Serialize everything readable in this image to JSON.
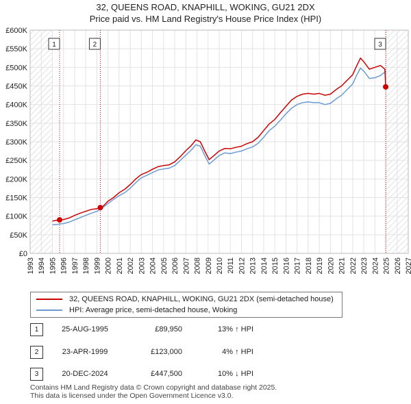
{
  "title_line1": "32, QUEENS ROAD, KNAPHILL, WOKING, GU21 2DX",
  "title_line2": "Price paid vs. HM Land Registry's House Price Index (HPI)",
  "chart_data": {
    "type": "line",
    "xlim": [
      1993,
      2027
    ],
    "ylim": [
      0,
      600000
    ],
    "x_ticks": [
      "1993",
      "1994",
      "1995",
      "1996",
      "1997",
      "1998",
      "1999",
      "2000",
      "2001",
      "2002",
      "2003",
      "2004",
      "2005",
      "2006",
      "2007",
      "2008",
      "2009",
      "2010",
      "2011",
      "2012",
      "2013",
      "2014",
      "2015",
      "2016",
      "2017",
      "2018",
      "2019",
      "2020",
      "2021",
      "2022",
      "2023",
      "2024",
      "2025",
      "2026",
      "2027"
    ],
    "y_ticks": [
      {
        "value": 0,
        "label": "£0"
      },
      {
        "value": 50000,
        "label": "£50K"
      },
      {
        "value": 100000,
        "label": "£100K"
      },
      {
        "value": 150000,
        "label": "£150K"
      },
      {
        "value": 200000,
        "label": "£200K"
      },
      {
        "value": 250000,
        "label": "£250K"
      },
      {
        "value": 300000,
        "label": "£300K"
      },
      {
        "value": 350000,
        "label": "£350K"
      },
      {
        "value": 400000,
        "label": "£400K"
      },
      {
        "value": 450000,
        "label": "£450K"
      },
      {
        "value": 500000,
        "label": "£500K"
      },
      {
        "value": 550000,
        "label": "£550K"
      },
      {
        "value": 600000,
        "label": "£600K"
      }
    ],
    "hatch_before": 1995.0,
    "hatch_after": 2025.0,
    "series": [
      {
        "name": "32, QUEENS ROAD, KNAPHILL, WOKING, GU21 2DX (semi-detached house)",
        "color": "#cc0000",
        "points": [
          [
            1995.0,
            87000
          ],
          [
            1995.65,
            89950
          ],
          [
            1996.0,
            91000
          ],
          [
            1996.5,
            95000
          ],
          [
            1997.0,
            102000
          ],
          [
            1997.5,
            108000
          ],
          [
            1998.0,
            113000
          ],
          [
            1998.5,
            118000
          ],
          [
            1999.0,
            120000
          ],
          [
            1999.31,
            123000
          ],
          [
            1999.6,
            128000
          ],
          [
            2000.0,
            140000
          ],
          [
            2000.5,
            150000
          ],
          [
            2001.0,
            163000
          ],
          [
            2001.5,
            172000
          ],
          [
            2002.0,
            185000
          ],
          [
            2002.5,
            200000
          ],
          [
            2003.0,
            212000
          ],
          [
            2003.5,
            218000
          ],
          [
            2004.0,
            226000
          ],
          [
            2004.5,
            233000
          ],
          [
            2005.0,
            236000
          ],
          [
            2005.5,
            238000
          ],
          [
            2006.0,
            246000
          ],
          [
            2006.5,
            260000
          ],
          [
            2007.0,
            276000
          ],
          [
            2007.5,
            290000
          ],
          [
            2007.9,
            305000
          ],
          [
            2008.3,
            300000
          ],
          [
            2008.7,
            275000
          ],
          [
            2009.1,
            252000
          ],
          [
            2009.5,
            262000
          ],
          [
            2010.0,
            275000
          ],
          [
            2010.5,
            282000
          ],
          [
            2011.0,
            281000
          ],
          [
            2011.5,
            285000
          ],
          [
            2012.0,
            288000
          ],
          [
            2012.5,
            295000
          ],
          [
            2013.0,
            300000
          ],
          [
            2013.5,
            312000
          ],
          [
            2014.0,
            330000
          ],
          [
            2014.5,
            348000
          ],
          [
            2015.0,
            360000
          ],
          [
            2015.5,
            378000
          ],
          [
            2016.0,
            395000
          ],
          [
            2016.5,
            412000
          ],
          [
            2017.0,
            422000
          ],
          [
            2017.5,
            428000
          ],
          [
            2018.0,
            430000
          ],
          [
            2018.5,
            428000
          ],
          [
            2019.0,
            430000
          ],
          [
            2019.5,
            425000
          ],
          [
            2020.0,
            428000
          ],
          [
            2020.5,
            440000
          ],
          [
            2021.0,
            450000
          ],
          [
            2021.5,
            465000
          ],
          [
            2022.0,
            480000
          ],
          [
            2022.3,
            500000
          ],
          [
            2022.7,
            525000
          ],
          [
            2023.0,
            515000
          ],
          [
            2023.5,
            495000
          ],
          [
            2024.0,
            500000
          ],
          [
            2024.5,
            505000
          ],
          [
            2024.9,
            495000
          ],
          [
            2024.97,
            447500
          ]
        ]
      },
      {
        "name": "HPI: Average price, semi-detached house, Woking",
        "color": "#6b9bd2",
        "points": [
          [
            1995.0,
            77000
          ],
          [
            1995.5,
            78000
          ],
          [
            1996.0,
            80000
          ],
          [
            1996.5,
            84000
          ],
          [
            1997.0,
            90000
          ],
          [
            1997.5,
            96000
          ],
          [
            1998.0,
            102000
          ],
          [
            1998.5,
            108000
          ],
          [
            1999.0,
            113000
          ],
          [
            1999.5,
            122000
          ],
          [
            2000.0,
            134000
          ],
          [
            2000.5,
            145000
          ],
          [
            2001.0,
            155000
          ],
          [
            2001.5,
            163000
          ],
          [
            2002.0,
            175000
          ],
          [
            2002.5,
            190000
          ],
          [
            2003.0,
            203000
          ],
          [
            2003.5,
            210000
          ],
          [
            2004.0,
            217000
          ],
          [
            2004.5,
            224000
          ],
          [
            2005.0,
            227000
          ],
          [
            2005.5,
            229000
          ],
          [
            2006.0,
            236000
          ],
          [
            2006.5,
            250000
          ],
          [
            2007.0,
            264000
          ],
          [
            2007.5,
            278000
          ],
          [
            2007.9,
            292000
          ],
          [
            2008.3,
            288000
          ],
          [
            2008.7,
            263000
          ],
          [
            2009.1,
            240000
          ],
          [
            2009.5,
            250000
          ],
          [
            2010.0,
            263000
          ],
          [
            2010.5,
            270000
          ],
          [
            2011.0,
            268000
          ],
          [
            2011.5,
            272000
          ],
          [
            2012.0,
            275000
          ],
          [
            2012.5,
            281000
          ],
          [
            2013.0,
            286000
          ],
          [
            2013.5,
            296000
          ],
          [
            2014.0,
            312000
          ],
          [
            2014.5,
            330000
          ],
          [
            2015.0,
            342000
          ],
          [
            2015.5,
            358000
          ],
          [
            2016.0,
            375000
          ],
          [
            2016.5,
            390000
          ],
          [
            2017.0,
            400000
          ],
          [
            2017.5,
            405000
          ],
          [
            2018.0,
            407000
          ],
          [
            2018.5,
            405000
          ],
          [
            2019.0,
            405000
          ],
          [
            2019.5,
            400000
          ],
          [
            2020.0,
            403000
          ],
          [
            2020.5,
            415000
          ],
          [
            2021.0,
            425000
          ],
          [
            2021.5,
            440000
          ],
          [
            2022.0,
            455000
          ],
          [
            2022.3,
            475000
          ],
          [
            2022.7,
            498000
          ],
          [
            2023.0,
            490000
          ],
          [
            2023.5,
            470000
          ],
          [
            2024.0,
            472000
          ],
          [
            2024.5,
            478000
          ],
          [
            2025.0,
            490000
          ]
        ]
      }
    ],
    "markers": [
      {
        "id": "1",
        "x": 1995.65,
        "y": 89950
      },
      {
        "id": "2",
        "x": 1999.31,
        "y": 123000
      },
      {
        "id": "3",
        "x": 2024.97,
        "y": 447500
      }
    ]
  },
  "legend": {
    "red_label": "32, QUEENS ROAD, KNAPHILL, WOKING, GU21 2DX (semi-detached house)",
    "blue_label": "HPI: Average price, semi-detached house, Woking"
  },
  "transactions": [
    {
      "num": "1",
      "date": "25-AUG-1995",
      "price": "£89,950",
      "hpi": "13% ↑ HPI"
    },
    {
      "num": "2",
      "date": "23-APR-1999",
      "price": "£123,000",
      "hpi": "4% ↑ HPI"
    },
    {
      "num": "3",
      "date": "20-DEC-2024",
      "price": "£447,500",
      "hpi": "10% ↓ HPI"
    }
  ],
  "footer_line1": "Contains HM Land Registry data © Crown copyright and database right 2025.",
  "footer_line2": "This data is licensed under the Open Government Licence v3.0."
}
